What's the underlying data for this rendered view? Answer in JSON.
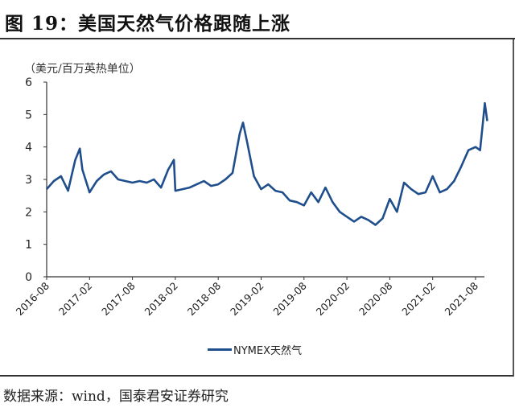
{
  "title": "图 19：美国天然气价格跟随上涨",
  "footer": "数据来源：wind，国泰君安证券研究",
  "chart_data": {
    "type": "line",
    "title": "图 19：美国天然气价格跟随上涨",
    "ylabel": "（美元/百万英热单位）",
    "ylim": [
      0,
      6
    ],
    "yticks": [
      0,
      1,
      2,
      3,
      4,
      5,
      6
    ],
    "xticks": [
      "2016-08",
      "2017-02",
      "2017-08",
      "2018-02",
      "2018-08",
      "2019-02",
      "2019-08",
      "2020-02",
      "2020-08",
      "2021-02",
      "2021-08"
    ],
    "legend_position": "bottom",
    "grid": false,
    "series": [
      {
        "name": "NYMEX天然气",
        "color": "#1f4e8c",
        "x": [
          "2016-08-01",
          "2016-09-01",
          "2016-10-01",
          "2016-11-01",
          "2016-12-01",
          "2016-12-20",
          "2017-01-01",
          "2017-02-01",
          "2017-03-01",
          "2017-04-01",
          "2017-05-01",
          "2017-06-01",
          "2017-07-01",
          "2017-08-01",
          "2017-09-01",
          "2017-10-01",
          "2017-11-01",
          "2017-12-01",
          "2018-01-01",
          "2018-01-25",
          "2018-02-01",
          "2018-03-01",
          "2018-04-01",
          "2018-05-01",
          "2018-06-01",
          "2018-07-01",
          "2018-08-01",
          "2018-09-01",
          "2018-10-01",
          "2018-11-01",
          "2018-11-15",
          "2018-12-01",
          "2019-01-01",
          "2019-02-01",
          "2019-03-01",
          "2019-04-01",
          "2019-05-01",
          "2019-06-01",
          "2019-07-01",
          "2019-08-01",
          "2019-09-01",
          "2019-10-01",
          "2019-11-01",
          "2019-12-01",
          "2020-01-01",
          "2020-02-01",
          "2020-03-01",
          "2020-04-01",
          "2020-05-01",
          "2020-06-01",
          "2020-07-01",
          "2020-08-01",
          "2020-09-01",
          "2020-10-01",
          "2020-11-01",
          "2020-12-01",
          "2021-01-01",
          "2021-02-01",
          "2021-03-01",
          "2021-04-01",
          "2021-05-01",
          "2021-06-01",
          "2021-07-01",
          "2021-08-01",
          "2021-08-20",
          "2021-09-01",
          "2021-09-10",
          "2021-09-20"
        ],
        "values": [
          2.7,
          2.95,
          3.1,
          2.65,
          3.6,
          3.95,
          3.3,
          2.6,
          2.95,
          3.15,
          3.25,
          3.0,
          2.95,
          2.9,
          2.95,
          2.9,
          3.0,
          2.75,
          3.3,
          3.6,
          2.65,
          2.7,
          2.75,
          2.85,
          2.95,
          2.8,
          2.85,
          3.0,
          3.2,
          4.4,
          4.75,
          4.2,
          3.1,
          2.7,
          2.85,
          2.65,
          2.6,
          2.35,
          2.3,
          2.2,
          2.6,
          2.3,
          2.75,
          2.3,
          2.0,
          1.85,
          1.7,
          1.85,
          1.75,
          1.6,
          1.8,
          2.4,
          2.0,
          2.9,
          2.7,
          2.55,
          2.6,
          3.1,
          2.6,
          2.7,
          2.95,
          3.4,
          3.9,
          4.0,
          3.9,
          4.7,
          5.35,
          4.8
        ]
      }
    ]
  }
}
